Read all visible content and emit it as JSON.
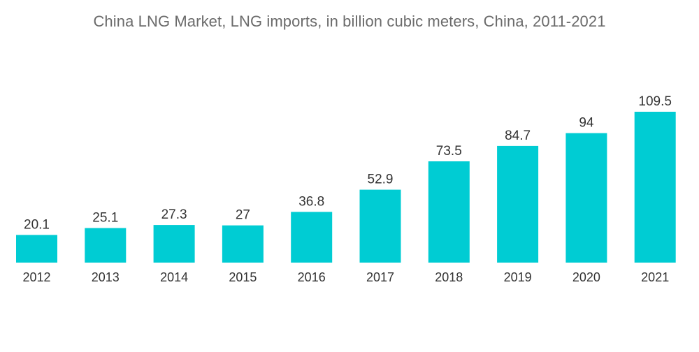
{
  "chart_data": {
    "type": "bar",
    "title": "China LNG Market, LNG imports, in billion cubic meters, China, 2011-2021",
    "xlabel": "",
    "ylabel": "",
    "categories": [
      "2012",
      "2013",
      "2014",
      "2015",
      "2016",
      "2017",
      "2018",
      "2019",
      "2020",
      "2021"
    ],
    "values": [
      20.1,
      25.1,
      27.3,
      27,
      36.8,
      52.9,
      73.5,
      84.7,
      94,
      109.5
    ],
    "value_labels": [
      "20.1",
      "25.1",
      "27.3",
      "27",
      "36.8",
      "52.9",
      "73.5",
      "84.7",
      "94",
      "109.5"
    ],
    "ylim": [
      0,
      109.5
    ],
    "grid": false,
    "legend": "none",
    "colors": {
      "bar": "#00ccd3",
      "text": "#333333",
      "title": "#6b6b6b"
    }
  }
}
